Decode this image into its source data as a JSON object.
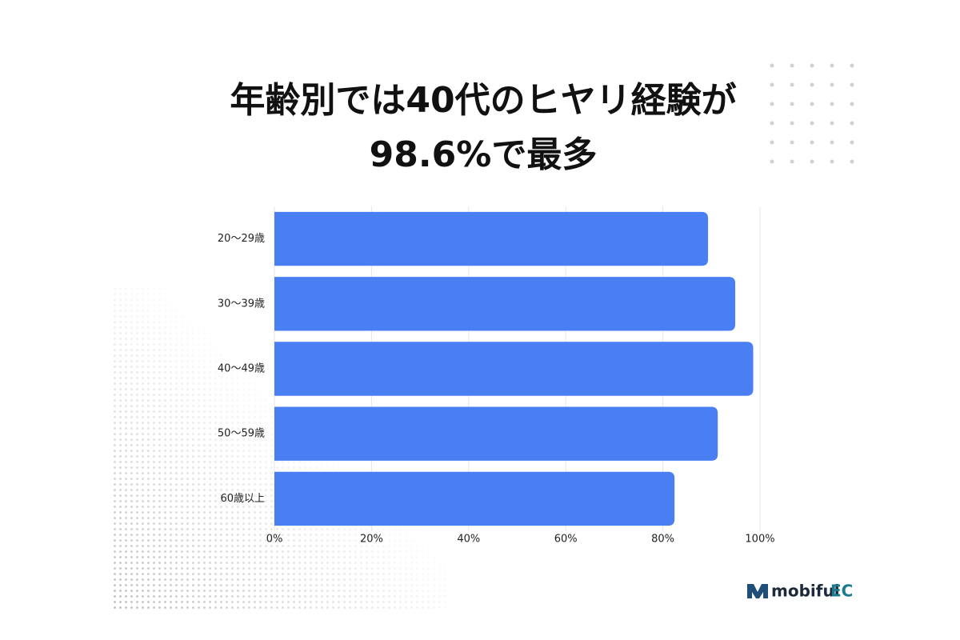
{
  "chart_data": {
    "type": "hbar",
    "title": [
      "年齢別では40代のヒヤリ経験が",
      "98.6%で最多"
    ],
    "categories": [
      "20～29歳",
      "30～39歳",
      "40～49歳",
      "50～59歳",
      "60歳以上"
    ],
    "values": [
      89.3,
      94.9,
      98.6,
      91.3,
      82.4
    ],
    "color": "#4a7ff3",
    "xlim": [
      0,
      100
    ],
    "xticks": [
      {
        "value": 0,
        "label": "0%"
      },
      {
        "value": 20,
        "label": "20%"
      },
      {
        "value": 40,
        "label": "40%"
      },
      {
        "value": 60,
        "label": "60%"
      },
      {
        "value": 80,
        "label": "80%"
      },
      {
        "value": 100,
        "label": "100%"
      }
    ],
    "grid": true,
    "brand": [
      "mobiful",
      "EC"
    ]
  }
}
